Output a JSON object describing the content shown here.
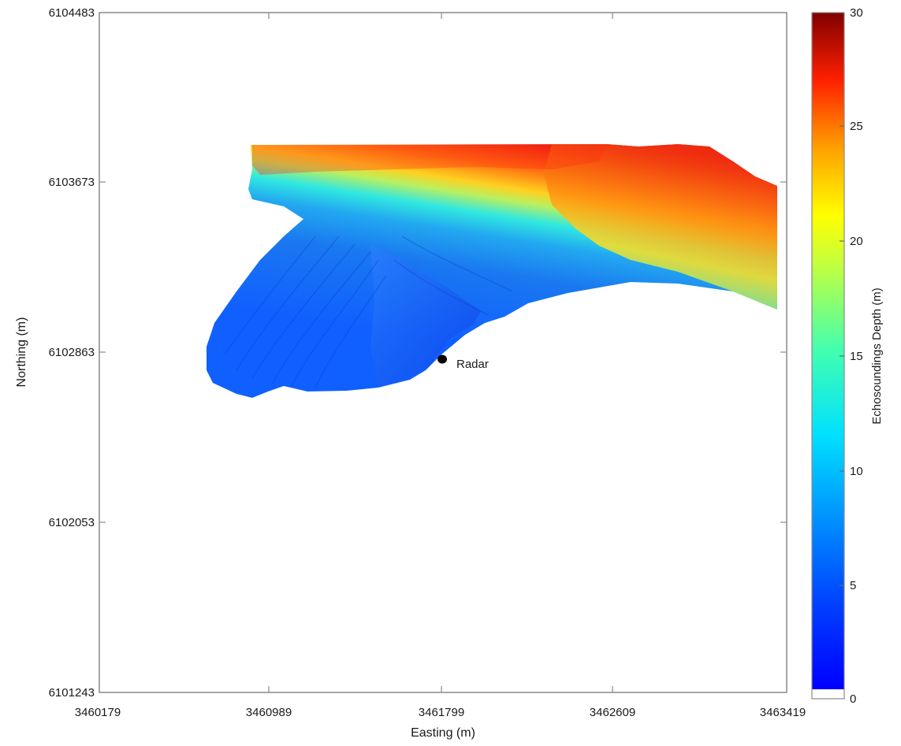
{
  "chart_data": {
    "type": "heatmap",
    "title": "",
    "xlabel": "Easting (m)",
    "ylabel": "Northing (m)",
    "xlim": [
      3460179,
      3463419
    ],
    "ylim": [
      6101243,
      6104483
    ],
    "xticks": [
      "3460179",
      "3460989",
      "3461799",
      "3462609",
      "3463419"
    ],
    "yticks": [
      "6101243",
      "6102053",
      "6102863",
      "6103673",
      "6104483"
    ],
    "colorbar": {
      "label": "Echosoundings Depth (m)",
      "range": [
        0,
        30
      ],
      "ticks": [
        "0",
        "5",
        "10",
        "15",
        "20",
        "25",
        "30"
      ],
      "colormap": "jet"
    },
    "annotations": [
      {
        "label": "Radar",
        "x": 3461799,
        "y": 6102840
      }
    ],
    "surveyed_region": {
      "depth_range": [
        5,
        30
      ],
      "shallow_zone_depth": "5-8",
      "deep_zone_depth": "20-30"
    }
  }
}
